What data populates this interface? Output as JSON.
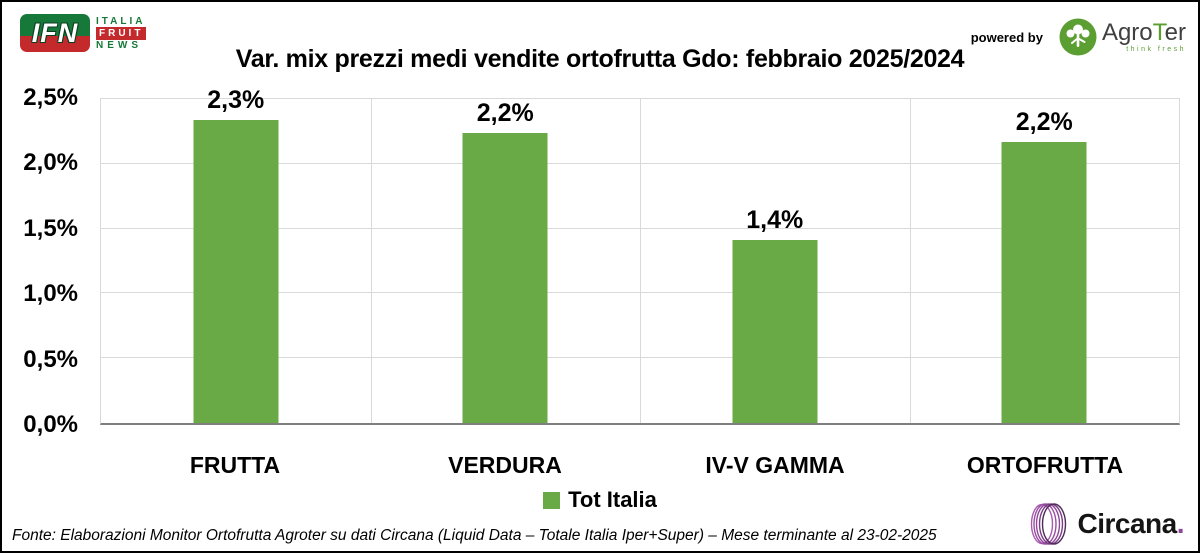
{
  "header": {
    "ifn": {
      "abbr": "IFN",
      "line1": "ITALIA",
      "line2": "FRUIT",
      "line3": "NEWS"
    },
    "powered_by": "powered by",
    "agroter": {
      "prefix": "Agro",
      "t": "T",
      "suffix": "er",
      "tagline": "think fresh"
    }
  },
  "title": "Var. mix prezzi medi vendite ortofrutta Gdo: febbraio 2025/2024",
  "chart_data": {
    "type": "bar",
    "title": "Var. mix prezzi medi vendite ortofrutta Gdo: febbraio 2025/2024",
    "categories": [
      "FRUTTA",
      "VERDURA",
      "IV-V GAMMA",
      "ORTOFRUTTA"
    ],
    "series": [
      {
        "name": "Tot Italia",
        "values": [
          2.34,
          2.24,
          1.41,
          2.17
        ],
        "data_labels": [
          "2,3%",
          "2,2%",
          "1,4%",
          "2,2%"
        ],
        "color": "#6aaa46"
      }
    ],
    "xlabel": "",
    "ylabel": "",
    "ylim": [
      0,
      2.5
    ],
    "ytick_step": 0.5,
    "ytick_labels": [
      "0,0%",
      "0,5%",
      "1,0%",
      "1,5%",
      "2,0%",
      "2,5%"
    ],
    "grid": true,
    "legend_position": "bottom"
  },
  "legend": {
    "label": "Tot Italia",
    "color": "#6aaa46"
  },
  "footer": {
    "source": "Fonte: Elaborazioni Monitor Ortofrutta Agroter su dati Circana (Liquid Data – Totale Italia Iper+Super) – Mese terminante al 23-02-2025",
    "circana_name": "Circana",
    "circana_dot": "."
  },
  "colors": {
    "bar": "#6aaa46",
    "gridline": "#d9d9d9",
    "axis_line": "#7f7f7f",
    "ifn_green": "#177939",
    "ifn_red": "#c4292b",
    "agroter_green": "#5b9e31",
    "circana_purple": "#8f4899"
  }
}
